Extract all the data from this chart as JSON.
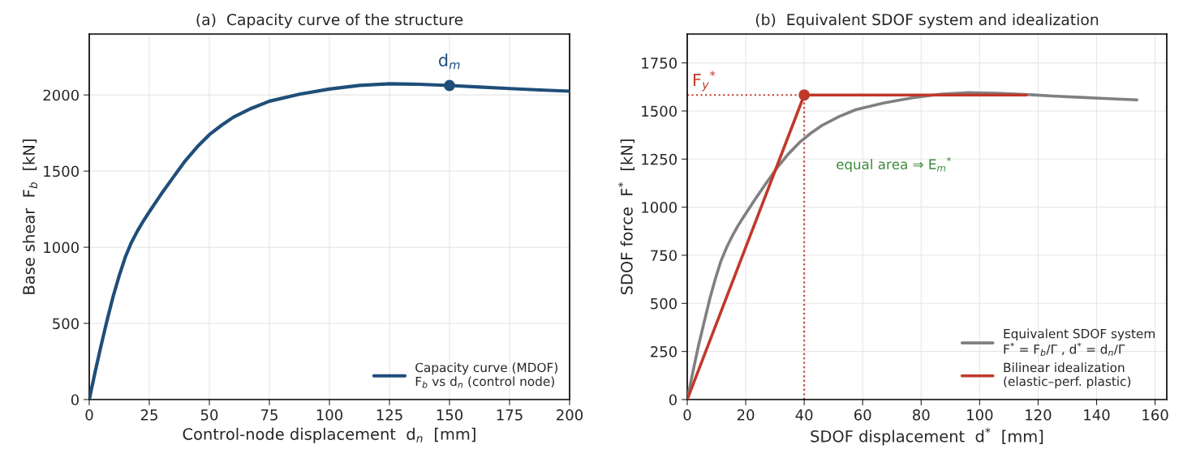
{
  "chart_data": [
    {
      "type": "line",
      "title": "(a)  Capacity curve of the structure",
      "xlabel": "Control-node displacement  d$_{n}$  [mm]",
      "ylabel": "Base shear  F$_{b}$  [kN]",
      "x": [
        0,
        2.5,
        5,
        7.5,
        10,
        12.5,
        15,
        17.5,
        20,
        22.5,
        25,
        30,
        35,
        40,
        45,
        50,
        55,
        60,
        67.5,
        75,
        87.5,
        100,
        112.5,
        125,
        137.5,
        150,
        162.5,
        175,
        187.5,
        200
      ],
      "series": [
        {
          "name": "Capacity curve (MDOF)\nF$_{b}$ vs d$_{n}$ (control node)",
          "color": "#1f4e79",
          "values": [
            0,
            185,
            360,
            525,
            680,
            815,
            935,
            1030,
            1105,
            1172,
            1233,
            1350,
            1460,
            1568,
            1660,
            1739,
            1800,
            1854,
            1912,
            1959,
            2005,
            2039,
            2063,
            2073,
            2070,
            2062,
            2052,
            2042,
            2033,
            2025
          ]
        },
        {
          "type": "scatter",
          "color": "#1f4e79",
          "x": [
            150
          ],
          "values": [
            2062
          ],
          "marker": "circle"
        }
      ],
      "annotations": [
        {
          "text": "d$_{m}$",
          "x": 150,
          "y": 2062
        }
      ],
      "xlim": [
        0,
        200
      ],
      "xticks": [
        0,
        25,
        50,
        75,
        100,
        125,
        150,
        175,
        200
      ],
      "ylim": [
        0,
        2400
      ],
      "yticks": [
        0,
        500,
        1000,
        1500,
        2000
      ],
      "grid": true,
      "legend": "bottom right",
      "line_style": "solid"
    },
    {
      "type": "line",
      "title": "(b)  Equivalent SDOF system and idealization",
      "xlabel": "SDOF displacement  d$^{*}$  [mm]",
      "ylabel": "SDOF force  F$^{*}$  [kN]",
      "series": [
        {
          "name": "Equivalent SDOF system\nF$^{*}$ = F$_{b}$/Γ , d$^{*}$ = d$_{n}$/Γ",
          "color": "#808080",
          "x": [
            0,
            1.9,
            3.8,
            5.8,
            7.7,
            9.6,
            11.5,
            13.5,
            15.4,
            17.3,
            19.2,
            23.1,
            26.9,
            30.8,
            34.6,
            38.5,
            42.3,
            46.2,
            51.9,
            57.7,
            67.3,
            76.9,
            86.5,
            96.2,
            105.8,
            115.4,
            125,
            134.6,
            144.2,
            153.8
          ],
          "values": [
            0,
            142,
            277,
            404,
            523,
            627,
            719,
            792,
            850,
            902,
            948,
            1038,
            1123,
            1206,
            1277,
            1338,
            1385,
            1426,
            1471,
            1507,
            1542,
            1568,
            1587,
            1595,
            1592,
            1586,
            1578,
            1571,
            1564,
            1558
          ]
        },
        {
          "name": "Bilinear idealization\n(elastic–perf. plastic)",
          "color": "#c0392b",
          "x": [
            0,
            40,
            116
          ],
          "values": [
            0,
            1583,
            1583
          ]
        },
        {
          "type": "scatter",
          "color": "#c0392b",
          "x": [
            40
          ],
          "values": [
            1583
          ],
          "marker": "circle"
        }
      ],
      "ref_lines": [
        {
          "axis": "y",
          "value": 1583,
          "label": "F$_{y}$$^{*}$",
          "color": "#c0392b",
          "line_style": "dotted"
        },
        {
          "axis": "x",
          "value": 40,
          "color": "#c0392b",
          "line_style": "dotted"
        }
      ],
      "annotations": [
        "equal area ⇒ E$_{m}$$^{*}$"
      ],
      "xlim": [
        0,
        164
      ],
      "xticks": [
        0,
        20,
        40,
        60,
        80,
        100,
        120,
        140,
        160
      ],
      "ylim": [
        0,
        1900
      ],
      "yticks": [
        0,
        250,
        500,
        750,
        1000,
        1250,
        1500,
        1750
      ],
      "grid": true,
      "legend": "bottom right",
      "line_style": "solid"
    }
  ]
}
